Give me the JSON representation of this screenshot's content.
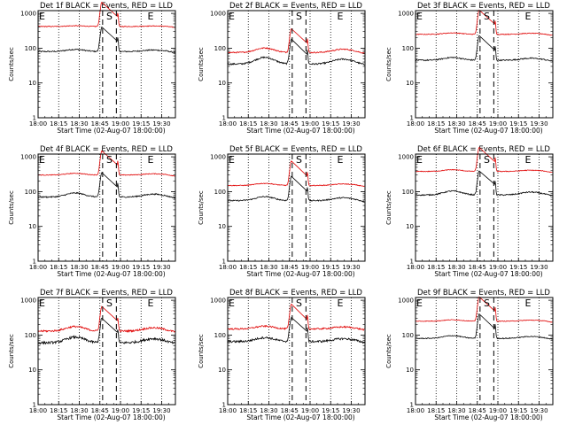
{
  "chart_data": {
    "type": "line",
    "panel_count": 9,
    "layout": "3x3 grid",
    "shared": {
      "ylabel": "Counts/sec",
      "xlabel": "Start Time (02-Aug-07 18:00:00)",
      "y_scale": "log",
      "ylim": [
        1,
        1200
      ],
      "yticks": [
        "1",
        "10",
        "100",
        "1000"
      ],
      "xlim_minutes": [
        0,
        100
      ],
      "xticks": [
        "18:00",
        "18:15",
        "18:30",
        "18:45",
        "19:00",
        "19:15",
        "19:30"
      ],
      "xticks_minutes": [
        0,
        15,
        30,
        45,
        60,
        75,
        90
      ],
      "dotted_vertical_lines_minutes": [
        15,
        30,
        45,
        60,
        75,
        90
      ],
      "dashed_markers_minutes": [
        47,
        57
      ],
      "marker_labels": [
        "E",
        "S",
        "E"
      ],
      "marker_label_minutes": [
        0,
        49,
        79
      ],
      "series_colors": {
        "Events": "#000000",
        "LLD": "#e00000"
      },
      "grid": "dotted verticals only",
      "legend": "encoded in panel titles"
    },
    "panels": [
      {
        "title": "Det  1f BLACK = Events, RED = LLD",
        "series": [
          {
            "name": "Events",
            "color": "#000000",
            "base": 80,
            "hump": 0.15,
            "noise": 0.04
          },
          {
            "name": "LLD",
            "color": "#e00000",
            "base": 420,
            "hump": 0.05,
            "noise": 0.025
          }
        ]
      },
      {
        "title": "Det  2f BLACK = Events, RED = LLD",
        "series": [
          {
            "name": "Events",
            "color": "#000000",
            "base": 35,
            "hump": 0.55,
            "noise": 0.05
          },
          {
            "name": "LLD",
            "color": "#e00000",
            "base": 75,
            "hump": 0.35,
            "noise": 0.04
          }
        ]
      },
      {
        "title": "Det  3f BLACK = Events, RED = LLD",
        "series": [
          {
            "name": "Events",
            "color": "#000000",
            "base": 45,
            "hump": 0.2,
            "noise": 0.04
          },
          {
            "name": "LLD",
            "color": "#e00000",
            "base": 250,
            "hump": 0.1,
            "noise": 0.025
          }
        ]
      },
      {
        "title": "Det  4f BLACK = Events, RED = LLD",
        "series": [
          {
            "name": "Events",
            "color": "#000000",
            "base": 70,
            "hump": 0.3,
            "noise": 0.04
          },
          {
            "name": "LLD",
            "color": "#e00000",
            "base": 300,
            "hump": 0.12,
            "noise": 0.025
          }
        ]
      },
      {
        "title": "Det  5f BLACK = Events, RED = LLD",
        "series": [
          {
            "name": "Events",
            "color": "#000000",
            "base": 55,
            "hump": 0.3,
            "noise": 0.04
          },
          {
            "name": "LLD",
            "color": "#e00000",
            "base": 150,
            "hump": 0.15,
            "noise": 0.025
          }
        ]
      },
      {
        "title": "Det  6f BLACK = Events, RED = LLD",
        "series": [
          {
            "name": "Events",
            "color": "#000000",
            "base": 80,
            "hump": 0.3,
            "noise": 0.04
          },
          {
            "name": "LLD",
            "color": "#e00000",
            "base": 380,
            "hump": 0.12,
            "noise": 0.025
          }
        ]
      },
      {
        "title": "Det  7f BLACK = Events, RED = LLD",
        "series": [
          {
            "name": "Events",
            "color": "#000000",
            "base": 60,
            "hump": 0.45,
            "noise": 0.08
          },
          {
            "name": "LLD",
            "color": "#e00000",
            "base": 130,
            "hump": 0.35,
            "noise": 0.06
          }
        ]
      },
      {
        "title": "Det  8f BLACK = Events, RED = LLD",
        "series": [
          {
            "name": "Events",
            "color": "#000000",
            "base": 65,
            "hump": 0.3,
            "noise": 0.07
          },
          {
            "name": "LLD",
            "color": "#e00000",
            "base": 150,
            "hump": 0.2,
            "noise": 0.05
          }
        ]
      },
      {
        "title": "Det  9f BLACK = Events, RED = LLD",
        "series": [
          {
            "name": "Events",
            "color": "#000000",
            "base": 80,
            "hump": 0.2,
            "noise": 0.03
          },
          {
            "name": "LLD",
            "color": "#e00000",
            "base": 250,
            "hump": 0.1,
            "noise": 0.02
          }
        ]
      }
    ]
  }
}
